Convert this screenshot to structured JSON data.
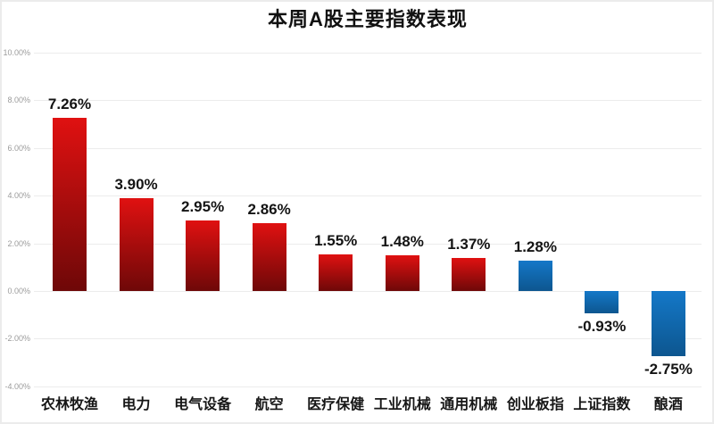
{
  "chart_data": {
    "type": "bar",
    "title": "本周A股主要指数表现",
    "categories": [
      "农林牧渔",
      "电力",
      "电气设备",
      "航空",
      "医疗保健",
      "工业机械",
      "通用机械",
      "创业板指",
      "上证指数",
      "酿酒"
    ],
    "values": [
      7.26,
      3.9,
      2.95,
      2.86,
      1.55,
      1.48,
      1.37,
      1.28,
      -0.93,
      -2.75
    ],
    "value_labels": [
      "7.26%",
      "3.90%",
      "2.95%",
      "2.86%",
      "1.55%",
      "1.48%",
      "1.37%",
      "1.28%",
      "-0.93%",
      "-2.75%"
    ],
    "bar_colors": [
      "red",
      "red",
      "red",
      "red",
      "red",
      "red",
      "red",
      "blue",
      "blue",
      "blue"
    ],
    "palette": {
      "red_top": "#e01111",
      "red_bottom": "#6e0808",
      "blue_top": "#1478c8",
      "blue_bottom": "#0d568f",
      "gridline": "#ececec",
      "tick_text": "#9b9b9b",
      "label_text": "#141414"
    },
    "xlabel": "",
    "ylabel": "",
    "ylim": [
      -4,
      10
    ],
    "yticks": [
      10,
      8,
      6,
      4,
      2,
      0,
      -2,
      -4
    ],
    "ytick_labels": [
      "10.00%",
      "8.00%",
      "6.00%",
      "4.00%",
      "2.00%",
      "0.00%",
      "-2.00%",
      "-4.00%"
    ],
    "grid": true,
    "legend": false
  }
}
